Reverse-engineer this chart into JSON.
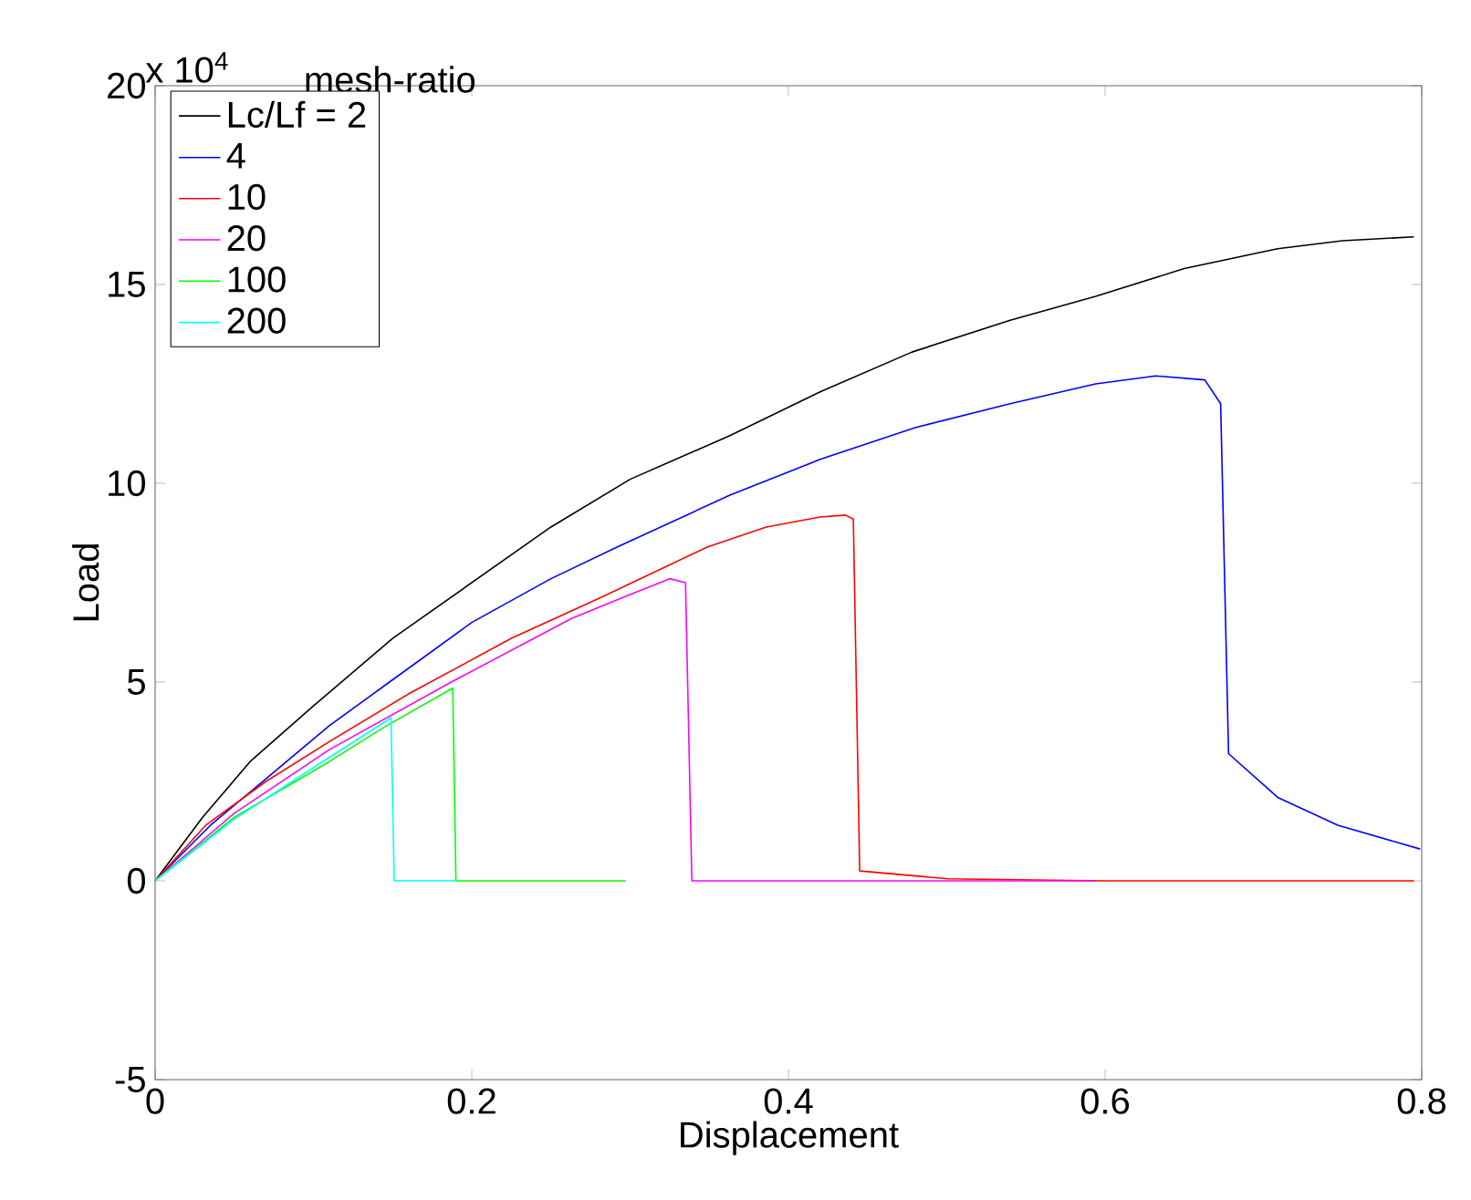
{
  "chart_data": {
    "type": "line",
    "xlabel": "Displacement",
    "ylabel": "Load",
    "legend_title": "mesh-ratio",
    "annotations": [
      "x 10$^{4}$"
    ],
    "xlim": [
      0,
      0.8
    ],
    "ylim": [
      -5,
      20
    ],
    "xticks": [
      0,
      0.2,
      0.4,
      0.6,
      0.8
    ],
    "yticks": [
      -5,
      0,
      5,
      10,
      15,
      20
    ],
    "legend": "top left",
    "series": [
      {
        "name": "Lc/Lf = 2",
        "color": "#000000",
        "x": [
          0,
          0.03,
          0.06,
          0.1,
          0.15,
          0.2,
          0.25,
          0.3,
          0.363,
          0.42,
          0.478,
          0.54,
          0.594,
          0.65,
          0.709,
          0.75,
          0.795
        ],
        "values": [
          0,
          1.6,
          3.0,
          4.4,
          6.1,
          7.5,
          8.9,
          10.1,
          11.2,
          12.3,
          13.3,
          14.1,
          14.7,
          15.4,
          15.9,
          16.1,
          16.2
        ]
      },
      {
        "name": "4",
        "color": "#0000ff",
        "x": [
          0,
          0.035,
          0.071,
          0.11,
          0.148,
          0.2,
          0.25,
          0.292,
          0.363,
          0.42,
          0.48,
          0.54,
          0.594,
          0.632,
          0.663,
          0.673,
          0.678,
          0.709,
          0.747,
          0.799
        ],
        "values": [
          0,
          1.4,
          2.6,
          3.9,
          5.0,
          6.5,
          7.6,
          8.4,
          9.7,
          10.6,
          11.4,
          12.0,
          12.5,
          12.7,
          12.6,
          12.0,
          3.2,
          2.1,
          1.4,
          0.8
        ]
      },
      {
        "name": "10",
        "color": "#ff0000",
        "x": [
          0,
          0.032,
          0.07,
          0.11,
          0.16,
          0.225,
          0.28,
          0.349,
          0.386,
          0.42,
          0.436,
          0.441,
          0.445,
          0.501,
          0.6,
          0.795
        ],
        "values": [
          0,
          1.4,
          2.5,
          3.5,
          4.7,
          6.1,
          7.1,
          8.4,
          8.9,
          9.15,
          9.2,
          9.1,
          0.25,
          0.05,
          0,
          0
        ]
      },
      {
        "name": "20",
        "color": "#ff00ff",
        "x": [
          0,
          0.05,
          0.11,
          0.187,
          0.263,
          0.3,
          0.325,
          0.335,
          0.339,
          0.594
        ],
        "values": [
          0,
          1.7,
          3.3,
          5.0,
          6.6,
          7.2,
          7.6,
          7.5,
          0,
          0
        ]
      },
      {
        "name": "100",
        "color": "#00ff00",
        "x": [
          0,
          0.05,
          0.11,
          0.144,
          0.188,
          0.19,
          0.297
        ],
        "values": [
          0,
          1.6,
          3.0,
          3.85,
          4.85,
          0,
          0
        ]
      },
      {
        "name": "200",
        "color": "#00ffff",
        "x": [
          0,
          0.05,
          0.1,
          0.149,
          0.151,
          0.19
        ],
        "values": [
          0,
          1.55,
          2.85,
          4.1,
          0,
          0
        ]
      }
    ]
  }
}
